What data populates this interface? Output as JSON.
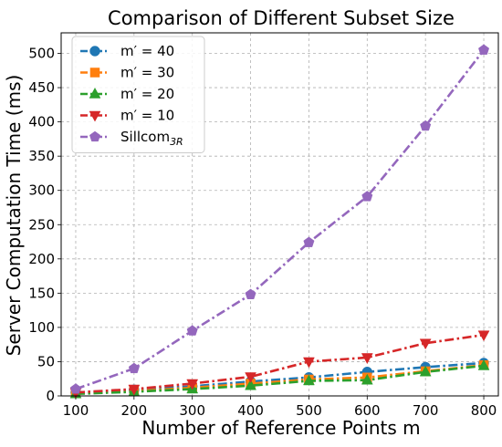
{
  "chart_data": {
    "type": "line",
    "title": "Comparison of Different Subset Size",
    "xlabel": "Number of Reference Points m",
    "ylabel": "Server Computation Time (ms)",
    "x": [
      100,
      200,
      300,
      400,
      500,
      600,
      700,
      800
    ],
    "x_ticks": [
      "100",
      "200",
      "300",
      "400",
      "500",
      "600",
      "700",
      "800"
    ],
    "y_ticks": [
      "0",
      "50",
      "100",
      "150",
      "200",
      "250",
      "300",
      "350",
      "400",
      "450",
      "500"
    ],
    "xlim": [
      75,
      825
    ],
    "ylim": [
      0,
      530
    ],
    "grid": true,
    "legend_position": "top-left",
    "series": [
      {
        "name_main": "m′ = 40",
        "name_sub": "",
        "color": "#1f77b4",
        "marker": "circle",
        "values": [
          5,
          9,
          14,
          21,
          27,
          35,
          42,
          48
        ]
      },
      {
        "name_main": "m′ = 30",
        "name_sub": "",
        "color": "#ff7f0e",
        "marker": "square",
        "values": [
          4,
          7,
          12,
          18,
          24,
          27,
          36,
          45
        ]
      },
      {
        "name_main": "m′ = 20",
        "name_sub": "",
        "color": "#2ca02c",
        "marker": "triangle-up",
        "values": [
          3,
          6,
          10,
          15,
          22,
          23,
          35,
          44
        ]
      },
      {
        "name_main": "m′ = 10",
        "name_sub": "",
        "color": "#d62728",
        "marker": "triangle-down",
        "values": [
          5,
          10,
          18,
          28,
          50,
          56,
          77,
          89
        ]
      },
      {
        "name_main": "Sillcom",
        "name_sub": "3R",
        "color": "#9467bd",
        "marker": "pentagon",
        "values": [
          10,
          40,
          95,
          148,
          224,
          291,
          394,
          505
        ]
      }
    ]
  }
}
